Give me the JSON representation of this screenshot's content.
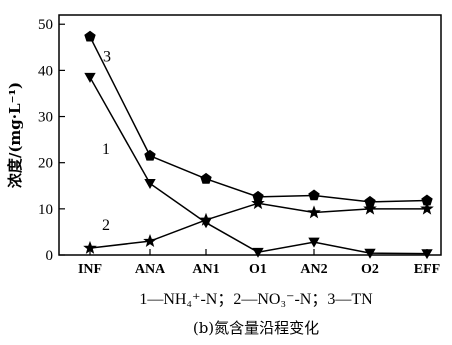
{
  "chart_data": {
    "type": "line",
    "categories": [
      "INF",
      "ANA",
      "AN1",
      "O1",
      "AN2",
      "O2",
      "EFF"
    ],
    "ylabel": "浓度/(mg·L⁻¹)",
    "ylim": [
      0,
      52
    ],
    "yticks": [
      0,
      10,
      20,
      30,
      40,
      50
    ],
    "series": [
      {
        "name": "1",
        "marker": "triangle-down",
        "values": [
          38.5,
          15.5,
          7.0,
          0.6,
          2.8,
          0.4,
          0.3
        ]
      },
      {
        "name": "2",
        "marker": "star",
        "values": [
          1.5,
          3.0,
          7.6,
          11.2,
          9.2,
          10.0,
          10.0
        ]
      },
      {
        "name": "3",
        "marker": "pentagon",
        "values": [
          47.3,
          21.5,
          16.5,
          12.6,
          12.9,
          11.5,
          11.8
        ]
      }
    ],
    "legend_text": "1—NH₄⁺-N；2—NO₃⁻-N；3—TN",
    "caption": "(b)氮含量沿程变化",
    "grid": false
  }
}
